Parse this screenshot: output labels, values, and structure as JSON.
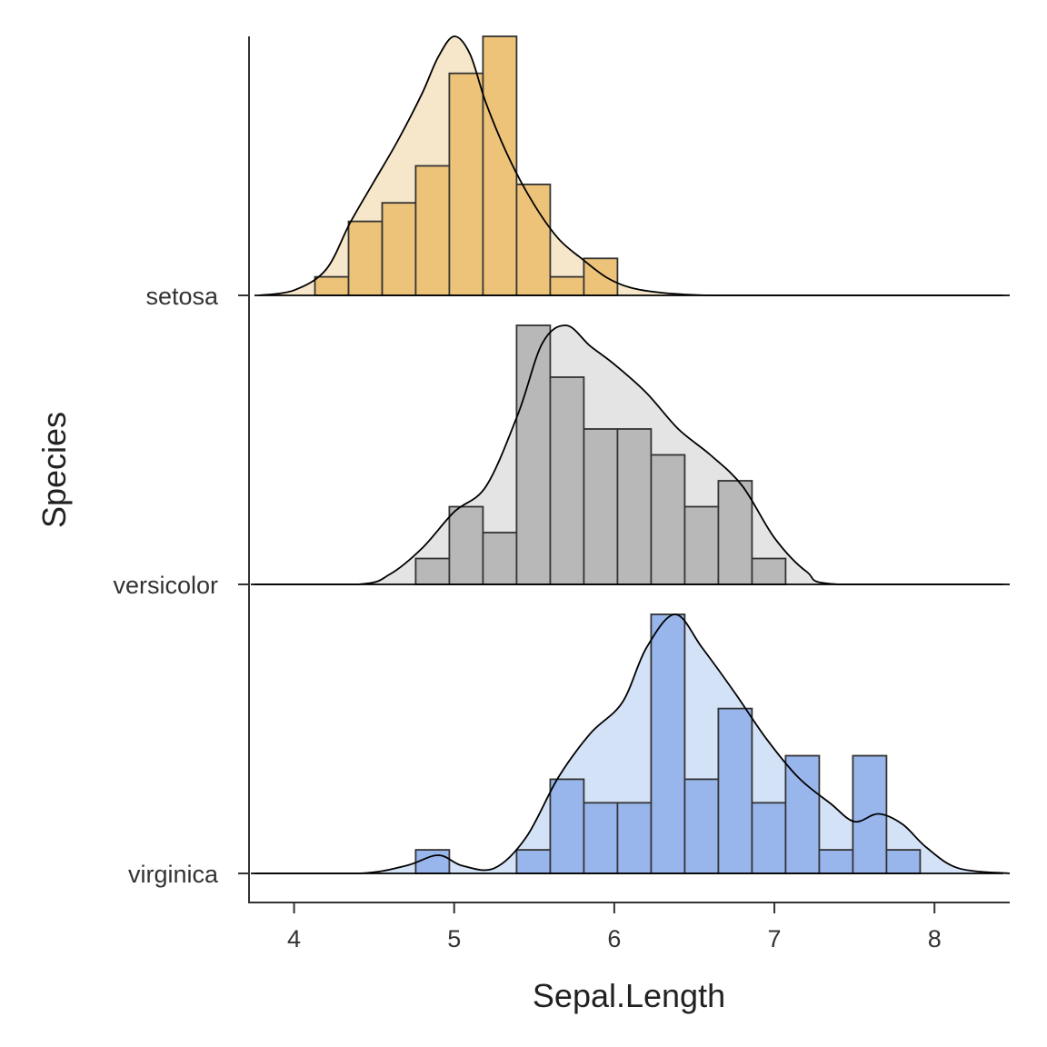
{
  "chart_data": {
    "type": "ridgeline",
    "xlabel": "Sepal.Length",
    "ylabel": "Species",
    "x_ticks": [
      4,
      5,
      6,
      7,
      8
    ],
    "xlim": [
      3.73,
      8.47
    ],
    "grid": false,
    "legend": "none",
    "hist_bins": {
      "edges": [
        3.92,
        4.13,
        4.34,
        4.55,
        4.76,
        4.97,
        5.18,
        5.39,
        5.6,
        5.81,
        6.02,
        6.23,
        6.44,
        6.65,
        6.86,
        7.07,
        7.28,
        7.49,
        7.7,
        7.91,
        8.12
      ]
    },
    "series": [
      {
        "name": "setosa",
        "hist_fill": "#EDC37A",
        "density_fill": "#F6E6CA",
        "counts": [
          0,
          1,
          4,
          5,
          7,
          12,
          14,
          6,
          1,
          2,
          0,
          0,
          0,
          0,
          0,
          0,
          0,
          0,
          0,
          0
        ],
        "density": {
          "x": [
            3.78,
            4.0,
            4.2,
            4.35,
            4.5,
            4.65,
            4.8,
            4.9,
            5.0,
            5.1,
            5.2,
            5.35,
            5.5,
            5.65,
            5.8,
            5.95,
            6.1,
            6.3,
            6.6,
            7.0,
            8.47
          ],
          "y": [
            0.0,
            0.02,
            0.1,
            0.28,
            0.44,
            0.6,
            0.78,
            0.92,
            1.0,
            0.93,
            0.74,
            0.52,
            0.35,
            0.22,
            0.14,
            0.07,
            0.03,
            0.01,
            0.0,
            0.0,
            0.0
          ]
        }
      },
      {
        "name": "versicolor",
        "hist_fill": "#B8B8B8",
        "density_fill": "#E4E4E4",
        "counts": [
          0,
          0,
          0,
          0,
          1,
          3,
          2,
          10,
          8,
          6,
          6,
          5,
          3,
          4,
          1,
          0,
          0,
          0,
          0,
          0
        ],
        "density": {
          "x": [
            3.73,
            4.4,
            4.6,
            4.8,
            5.0,
            5.2,
            5.4,
            5.55,
            5.7,
            5.85,
            6.0,
            6.2,
            6.4,
            6.6,
            6.8,
            7.0,
            7.2,
            7.4,
            8.47
          ],
          "y": [
            0.0,
            0.0,
            0.04,
            0.14,
            0.28,
            0.38,
            0.66,
            0.93,
            1.0,
            0.92,
            0.85,
            0.74,
            0.6,
            0.5,
            0.38,
            0.18,
            0.05,
            0.0,
            0.0
          ]
        }
      },
      {
        "name": "virginica",
        "hist_fill": "#98B6EC",
        "density_fill": "#D4E2F7",
        "counts": [
          0,
          0,
          0,
          0,
          1,
          0,
          0,
          1,
          4,
          3,
          3,
          11,
          4,
          7,
          3,
          5,
          1,
          5,
          1,
          0
        ],
        "density": {
          "x": [
            3.73,
            4.4,
            4.7,
            4.9,
            5.05,
            5.25,
            5.45,
            5.65,
            5.85,
            6.05,
            6.2,
            6.38,
            6.55,
            6.75,
            6.95,
            7.15,
            7.35,
            7.5,
            7.65,
            7.8,
            7.95,
            8.15,
            8.47
          ],
          "y": [
            0.0,
            0.0,
            0.03,
            0.07,
            0.03,
            0.02,
            0.14,
            0.37,
            0.54,
            0.66,
            0.87,
            1.0,
            0.87,
            0.7,
            0.52,
            0.37,
            0.27,
            0.2,
            0.23,
            0.19,
            0.1,
            0.02,
            0.0
          ]
        }
      }
    ]
  }
}
